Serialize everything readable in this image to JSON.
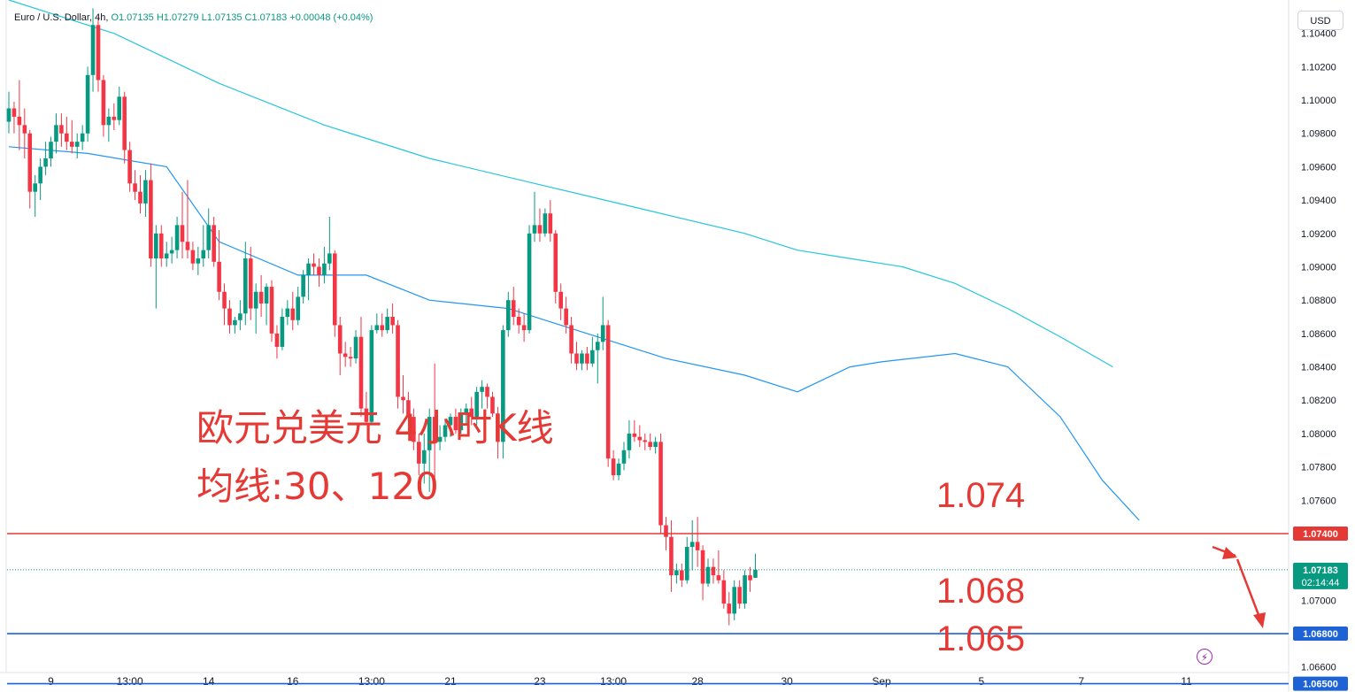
{
  "legend": {
    "symbol": "Euro / U.S. Dollar, 4h,",
    "ohlc": "O1.07135 H1.07279 L1.07135 C1.07183 +0.00048 (+0.04%)"
  },
  "currency_button": "USD",
  "annotations": {
    "title": "欧元兑美元 4小时K线",
    "ma_note": "均线:30、120",
    "level_1074": "1.074",
    "level_1068": "1.068",
    "level_1065": "1.065"
  },
  "colors": {
    "up": "#089981",
    "down": "#f23645",
    "ma30": "#2196f3",
    "ma120": "#26c6da",
    "resistance": "#e53935",
    "support": "#1e63d6"
  },
  "chart_data": {
    "type": "candlestick",
    "timeframe": "4h",
    "symbol": "Euro / U.S. Dollar",
    "ylim": [
      1.0645,
      1.106
    ],
    "y_ticks": [
      1.104,
      1.102,
      1.1,
      1.098,
      1.096,
      1.094,
      1.092,
      1.09,
      1.088,
      1.086,
      1.084,
      1.082,
      1.08,
      1.078,
      1.076,
      1.07,
      1.066
    ],
    "x_ticks": [
      {
        "label": "9",
        "bar": 8
      },
      {
        "label": "13:00",
        "bar": 23
      },
      {
        "label": "14",
        "bar": 38
      },
      {
        "label": "16",
        "bar": 54
      },
      {
        "label": "13:00",
        "bar": 69
      },
      {
        "label": "21",
        "bar": 84
      },
      {
        "label": "23",
        "bar": 101
      },
      {
        "label": "13:00",
        "bar": 115
      },
      {
        "label": "28",
        "bar": 131
      },
      {
        "label": "30",
        "bar": 148
      },
      {
        "label": "Sep",
        "bar": 166
      },
      {
        "label": "5",
        "bar": 185
      },
      {
        "label": "7",
        "bar": 204
      },
      {
        "label": "11",
        "bar": 224
      }
    ],
    "horizontal_lines": [
      {
        "value": 1.074,
        "label": "1.07400",
        "color": "#e53935"
      },
      {
        "value": 1.068,
        "label": "1.06800",
        "color": "#1e63d6"
      },
      {
        "value": 1.065,
        "label": "1.06500",
        "color": "#1e63d6"
      }
    ],
    "last_price": {
      "value": 1.07183,
      "label": "1.07183",
      "countdown": "02:14:44"
    },
    "ohlc": [
      [
        1.0987,
        1.1005,
        1.098,
        1.0995
      ],
      [
        1.0995,
        1.0999,
        1.098,
        1.099
      ],
      [
        1.099,
        1.1012,
        1.097,
        1.0985
      ],
      [
        1.0985,
        1.0995,
        1.0965,
        1.098
      ],
      [
        1.098,
        1.0982,
        1.0935,
        1.0945
      ],
      [
        1.0945,
        1.0955,
        1.093,
        1.095
      ],
      [
        1.095,
        1.0965,
        1.094,
        1.096
      ],
      [
        1.096,
        1.0975,
        1.0955,
        1.0965
      ],
      [
        1.0965,
        1.0978,
        1.096,
        1.0975
      ],
      [
        1.0975,
        1.0992,
        1.0968,
        1.0985
      ],
      [
        1.0985,
        1.0992,
        1.0972,
        1.098
      ],
      [
        1.098,
        1.099,
        1.097,
        1.0975
      ],
      [
        1.0975,
        1.0988,
        1.0968,
        1.0972
      ],
      [
        1.0972,
        1.098,
        1.0965,
        1.0975
      ],
      [
        1.0975,
        1.0985,
        1.097,
        1.098
      ],
      [
        1.098,
        1.102,
        1.0975,
        1.1015
      ],
      [
        1.1015,
        1.1055,
        1.1005,
        1.1045
      ],
      [
        1.1045,
        1.105,
        1.1005,
        1.1012
      ],
      [
        1.1012,
        1.1015,
        1.0978,
        1.0985
      ],
      [
        1.0985,
        1.0995,
        1.0975,
        1.099
      ],
      [
        1.099,
        1.0998,
        1.0982,
        1.0988
      ],
      [
        1.0988,
        1.1008,
        1.0985,
        1.1002
      ],
      [
        1.1002,
        1.1005,
        1.0962,
        1.097
      ],
      [
        1.097,
        1.0975,
        1.0945,
        1.095
      ],
      [
        1.095,
        1.0958,
        1.094,
        1.0945
      ],
      [
        1.0945,
        1.0955,
        1.0932,
        1.0938
      ],
      [
        1.0938,
        1.0958,
        1.093,
        1.0952
      ],
      [
        1.0952,
        1.0962,
        1.09,
        1.0905
      ],
      [
        1.0905,
        1.0925,
        1.0875,
        1.092
      ],
      [
        1.092,
        1.0925,
        1.09,
        1.0905
      ],
      [
        1.0905,
        1.0915,
        1.09,
        1.0908
      ],
      [
        1.0908,
        1.0918,
        1.0902,
        1.091
      ],
      [
        1.091,
        1.093,
        1.0905,
        1.0925
      ],
      [
        1.0925,
        1.0945,
        1.0905,
        1.0915
      ],
      [
        1.0915,
        1.0952,
        1.0905,
        1.091
      ],
      [
        1.091,
        1.0915,
        1.0898,
        1.0902
      ],
      [
        1.0902,
        1.0912,
        1.0895,
        1.0905
      ],
      [
        1.0905,
        1.0925,
        1.09,
        1.091
      ],
      [
        1.091,
        1.0935,
        1.0905,
        1.0925
      ],
      [
        1.0925,
        1.093,
        1.09,
        1.0903
      ],
      [
        1.0903,
        1.0922,
        1.088,
        1.0885
      ],
      [
        1.0885,
        1.089,
        1.0865,
        1.0875
      ],
      [
        1.0875,
        1.088,
        1.086,
        1.0865
      ],
      [
        1.0865,
        1.087,
        1.086,
        1.0868
      ],
      [
        1.0868,
        1.088,
        1.0862,
        1.0872
      ],
      [
        1.0872,
        1.0915,
        1.0865,
        1.0905
      ],
      [
        1.0905,
        1.0912,
        1.0868,
        1.0875
      ],
      [
        1.0875,
        1.089,
        1.086,
        1.0885
      ],
      [
        1.0885,
        1.0895,
        1.087,
        1.0878
      ],
      [
        1.0878,
        1.089,
        1.0865,
        1.0888
      ],
      [
        1.0888,
        1.0892,
        1.0855,
        1.086
      ],
      [
        1.086,
        1.0865,
        1.0845,
        1.0852
      ],
      [
        1.0852,
        1.0875,
        1.085,
        1.087
      ],
      [
        1.087,
        1.088,
        1.0865,
        1.0875
      ],
      [
        1.0875,
        1.0885,
        1.0862,
        1.0868
      ],
      [
        1.0868,
        1.0888,
        1.0865,
        1.0882
      ],
      [
        1.0882,
        1.0898,
        1.0878,
        1.0895
      ],
      [
        1.0895,
        1.0905,
        1.088,
        1.0902
      ],
      [
        1.0902,
        1.0908,
        1.0895,
        1.09
      ],
      [
        1.09,
        1.0905,
        1.0888,
        1.0895
      ],
      [
        1.0895,
        1.0912,
        1.089,
        1.0902
      ],
      [
        1.0902,
        1.093,
        1.0898,
        1.0908
      ],
      [
        1.0908,
        1.091,
        1.0858,
        1.0865
      ],
      [
        1.0865,
        1.087,
        1.0835,
        1.0848
      ],
      [
        1.0848,
        1.0855,
        1.084,
        1.0846
      ],
      [
        1.0846,
        1.0852,
        1.084,
        1.0845
      ],
      [
        1.0845,
        1.0862,
        1.0842,
        1.0858
      ],
      [
        1.0858,
        1.087,
        1.081,
        1.0815
      ],
      [
        1.0815,
        1.0825,
        1.0805,
        1.0807
      ],
      [
        1.0807,
        1.0865,
        1.0805,
        1.0862
      ],
      [
        1.0862,
        1.0872,
        1.086,
        1.0865
      ],
      [
        1.0865,
        1.0872,
        1.0858,
        1.0862
      ],
      [
        1.0862,
        1.0875,
        1.086,
        1.087
      ],
      [
        1.087,
        1.0878,
        1.086,
        1.0865
      ],
      [
        1.0865,
        1.0868,
        1.0815,
        1.0822
      ],
      [
        1.0822,
        1.0835,
        1.0812,
        1.082
      ],
      [
        1.082,
        1.0825,
        1.08,
        1.081
      ],
      [
        1.081,
        1.0815,
        1.079,
        1.0795
      ],
      [
        1.0795,
        1.08,
        1.0775,
        1.0782
      ],
      [
        1.0782,
        1.08,
        1.077,
        1.079
      ],
      [
        1.079,
        1.0815,
        1.0765,
        1.081
      ],
      [
        1.081,
        1.0842,
        1.0765,
        1.0795
      ],
      [
        1.0795,
        1.0805,
        1.079,
        1.0798
      ],
      [
        1.0798,
        1.0808,
        1.0795,
        1.0805
      ],
      [
        1.0805,
        1.0812,
        1.0798,
        1.081
      ],
      [
        1.081,
        1.0815,
        1.08,
        1.0802
      ],
      [
        1.0802,
        1.0815,
        1.08,
        1.0812
      ],
      [
        1.0812,
        1.0818,
        1.0805,
        1.0815
      ],
      [
        1.0815,
        1.0822,
        1.0805,
        1.081
      ],
      [
        1.081,
        1.0828,
        1.0805,
        1.0825
      ],
      [
        1.0825,
        1.0832,
        1.0815,
        1.0828
      ],
      [
        1.0828,
        1.083,
        1.0815,
        1.0822
      ],
      [
        1.0822,
        1.0825,
        1.081,
        1.0812
      ],
      [
        1.0812,
        1.0816,
        1.0785,
        1.0795
      ],
      [
        1.0795,
        1.0865,
        1.0785,
        1.0862
      ],
      [
        1.0862,
        1.0885,
        1.0858,
        1.088
      ],
      [
        1.088,
        1.0888,
        1.0865,
        1.087
      ],
      [
        1.087,
        1.0875,
        1.086,
        1.0865
      ],
      [
        1.0865,
        1.0872,
        1.0855,
        1.0862
      ],
      [
        1.0862,
        1.0925,
        1.086,
        1.092
      ],
      [
        1.092,
        1.0945,
        1.0915,
        1.0925
      ],
      [
        1.0925,
        1.0935,
        1.0915,
        1.092
      ],
      [
        1.092,
        1.0935,
        1.0918,
        1.0932
      ],
      [
        1.0932,
        1.094,
        1.0915,
        1.092
      ],
      [
        1.092,
        1.0922,
        1.0878,
        1.0885
      ],
      [
        1.0885,
        1.089,
        1.0868,
        1.0875
      ],
      [
        1.0875,
        1.0882,
        1.086,
        1.0865
      ],
      [
        1.0865,
        1.087,
        1.0842,
        1.0848
      ],
      [
        1.0848,
        1.0855,
        1.0838,
        1.0842
      ],
      [
        1.0842,
        1.085,
        1.0838,
        1.0848
      ],
      [
        1.0848,
        1.0852,
        1.0838,
        1.0842
      ],
      [
        1.0842,
        1.0858,
        1.084,
        1.085
      ],
      [
        1.085,
        1.086,
        1.083,
        1.0855
      ],
      [
        1.0855,
        1.0882,
        1.085,
        1.0865
      ],
      [
        1.0865,
        1.0868,
        1.078,
        1.0785
      ],
      [
        1.0785,
        1.079,
        1.0772,
        1.0775
      ],
      [
        1.0775,
        1.0785,
        1.0772,
        1.0782
      ],
      [
        1.0782,
        1.0795,
        1.0778,
        1.079
      ],
      [
        1.079,
        1.0808,
        1.0785,
        1.08
      ],
      [
        1.08,
        1.0808,
        1.0795,
        1.0798
      ],
      [
        1.0798,
        1.0805,
        1.0792,
        1.0796
      ],
      [
        1.0796,
        1.08,
        1.079,
        1.0795
      ],
      [
        1.0795,
        1.08,
        1.079,
        1.0792
      ],
      [
        1.0792,
        1.0798,
        1.0788,
        1.0795
      ],
      [
        1.0795,
        1.08,
        1.074,
        1.0745
      ],
      [
        1.0745,
        1.075,
        1.073,
        1.0738
      ],
      [
        1.0738,
        1.0748,
        1.0705,
        1.0715
      ],
      [
        1.0715,
        1.0722,
        1.071,
        1.0718
      ],
      [
        1.0718,
        1.0722,
        1.0708,
        1.0712
      ],
      [
        1.0712,
        1.0738,
        1.071,
        1.0732
      ],
      [
        1.0732,
        1.0748,
        1.0718,
        1.0735
      ],
      [
        1.0735,
        1.075,
        1.072,
        1.073
      ],
      [
        1.073,
        1.0733,
        1.07,
        1.071
      ],
      [
        1.071,
        1.0725,
        1.0708,
        1.072
      ],
      [
        1.072,
        1.0725,
        1.071,
        1.0715
      ],
      [
        1.0715,
        1.073,
        1.071,
        1.0712
      ],
      [
        1.0712,
        1.0718,
        1.0695,
        1.0698
      ],
      [
        1.0698,
        1.0705,
        1.0685,
        1.0692
      ],
      [
        1.0692,
        1.0712,
        1.0688,
        1.0708
      ],
      [
        1.0708,
        1.0712,
        1.0695,
        1.0698
      ],
      [
        1.0698,
        1.0718,
        1.0695,
        1.0715
      ],
      [
        1.0715,
        1.072,
        1.0705,
        1.0712
      ],
      [
        1.07135,
        1.07279,
        1.07135,
        1.07183
      ]
    ],
    "ma30": [
      [
        0,
        1.0972
      ],
      [
        15,
        1.0968
      ],
      [
        30,
        1.096
      ],
      [
        40,
        1.0915
      ],
      [
        55,
        1.0895
      ],
      [
        68,
        1.0895
      ],
      [
        80,
        1.088
      ],
      [
        95,
        1.0875
      ],
      [
        110,
        1.086
      ],
      [
        125,
        1.0845
      ],
      [
        140,
        1.0835
      ],
      [
        150,
        1.0825
      ],
      [
        160,
        1.084
      ],
      [
        166,
        1.0843
      ],
      [
        180,
        1.0848
      ],
      [
        190,
        1.084
      ],
      [
        200,
        1.081
      ],
      [
        208,
        1.0772
      ],
      [
        215,
        1.0748
      ]
    ],
    "ma120": [
      [
        0,
        1.106
      ],
      [
        20,
        1.104
      ],
      [
        40,
        1.101
      ],
      [
        60,
        1.0985
      ],
      [
        80,
        1.0965
      ],
      [
        100,
        1.095
      ],
      [
        120,
        1.0935
      ],
      [
        140,
        1.092
      ],
      [
        150,
        1.091
      ],
      [
        160,
        1.0905
      ],
      [
        170,
        1.09
      ],
      [
        180,
        1.089
      ],
      [
        190,
        1.0875
      ],
      [
        200,
        1.0858
      ],
      [
        210,
        1.084
      ]
    ]
  }
}
